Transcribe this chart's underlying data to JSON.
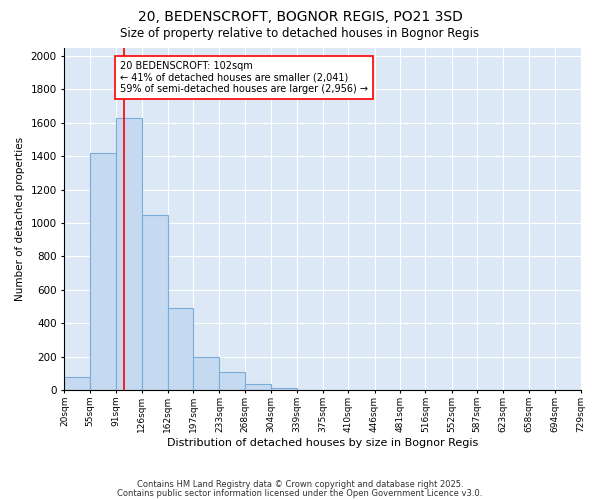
{
  "title1": "20, BEDENSCROFT, BOGNOR REGIS, PO21 3SD",
  "title2": "Size of property relative to detached houses in Bognor Regis",
  "xlabel": "Distribution of detached houses by size in Bognor Regis",
  "ylabel": "Number of detached properties",
  "bar_edges": [
    20,
    55,
    91,
    126,
    162,
    197,
    233,
    268,
    304,
    339,
    375,
    410,
    446,
    481,
    516,
    552,
    587,
    623,
    658,
    694,
    729
  ],
  "bar_heights": [
    75,
    1420,
    1630,
    1050,
    490,
    200,
    105,
    35,
    15,
    0,
    0,
    0,
    0,
    0,
    0,
    0,
    0,
    0,
    0,
    0
  ],
  "bar_color": "#c5d9f0",
  "bar_edgecolor": "#7aadda",
  "vline_x": 102,
  "vline_color": "red",
  "annotation_text": "20 BEDENSCROFT: 102sqm\n← 41% of detached houses are smaller (2,041)\n59% of semi-detached houses are larger (2,956) →",
  "annotation_box_color": "white",
  "annotation_box_edgecolor": "red",
  "ylim": [
    0,
    2050
  ],
  "yticks": [
    0,
    200,
    400,
    600,
    800,
    1000,
    1200,
    1400,
    1600,
    1800,
    2000
  ],
  "tick_labels": [
    "20sqm",
    "55sqm",
    "91sqm",
    "126sqm",
    "162sqm",
    "197sqm",
    "233sqm",
    "268sqm",
    "304sqm",
    "339sqm",
    "375sqm",
    "410sqm",
    "446sqm",
    "481sqm",
    "516sqm",
    "552sqm",
    "587sqm",
    "623sqm",
    "658sqm",
    "694sqm",
    "729sqm"
  ],
  "footer1": "Contains HM Land Registry data © Crown copyright and database right 2025.",
  "footer2": "Contains public sector information licensed under the Open Government Licence v3.0.",
  "bg_color": "#ffffff",
  "plot_bg_color": "#dce8f5"
}
